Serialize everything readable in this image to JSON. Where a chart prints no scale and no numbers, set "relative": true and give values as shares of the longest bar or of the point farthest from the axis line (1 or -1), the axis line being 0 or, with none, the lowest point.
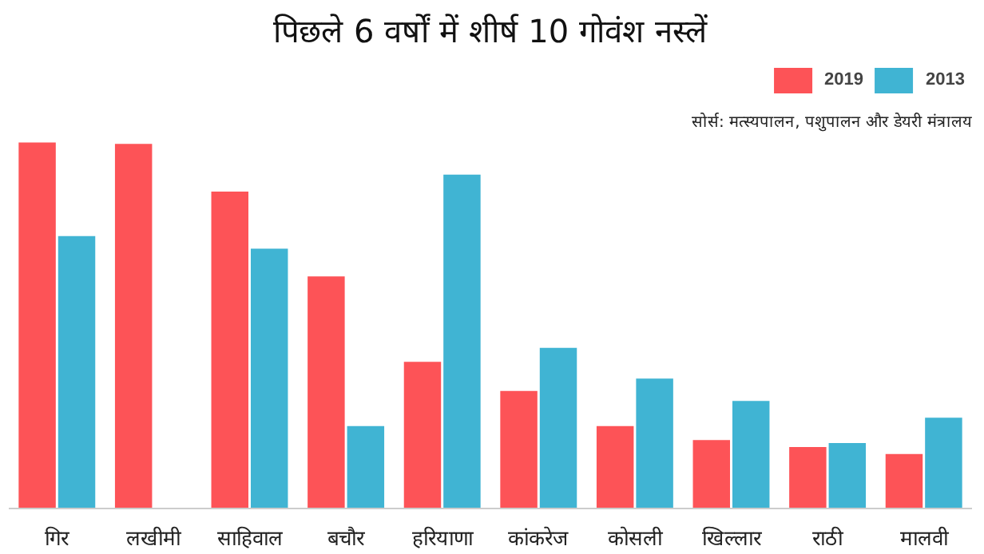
{
  "chart_data": {
    "type": "bar",
    "title": "पिछले 6 वर्षों में शीर्ष 10 गोवंश नस्लें",
    "relative": true,
    "categories": [
      "गिर",
      "लखीमी",
      "साहिवाल",
      "बचौर",
      "हरियाणा",
      "कांकरेज",
      "कोसली",
      "खिल्लार",
      "राठी",
      "मालवी"
    ],
    "series": [
      {
        "name": "2019",
        "color": "#fd5357",
        "values": [
          1,
          0.996,
          0.866,
          0.634,
          0.401,
          0.321,
          0.225,
          0.187,
          0.168,
          0.149
        ]
      },
      {
        "name": "2013",
        "color": "#40b4d3",
        "values": [
          0.744,
          null,
          0.71,
          0.225,
          0.912,
          0.439,
          0.355,
          0.294,
          0.179,
          0.248
        ]
      }
    ],
    "legend": "top right",
    "annotations": [
      "सोर्स: मत्स्यपालन, पशुपालन और डेयरी मंत्रालय"
    ]
  }
}
